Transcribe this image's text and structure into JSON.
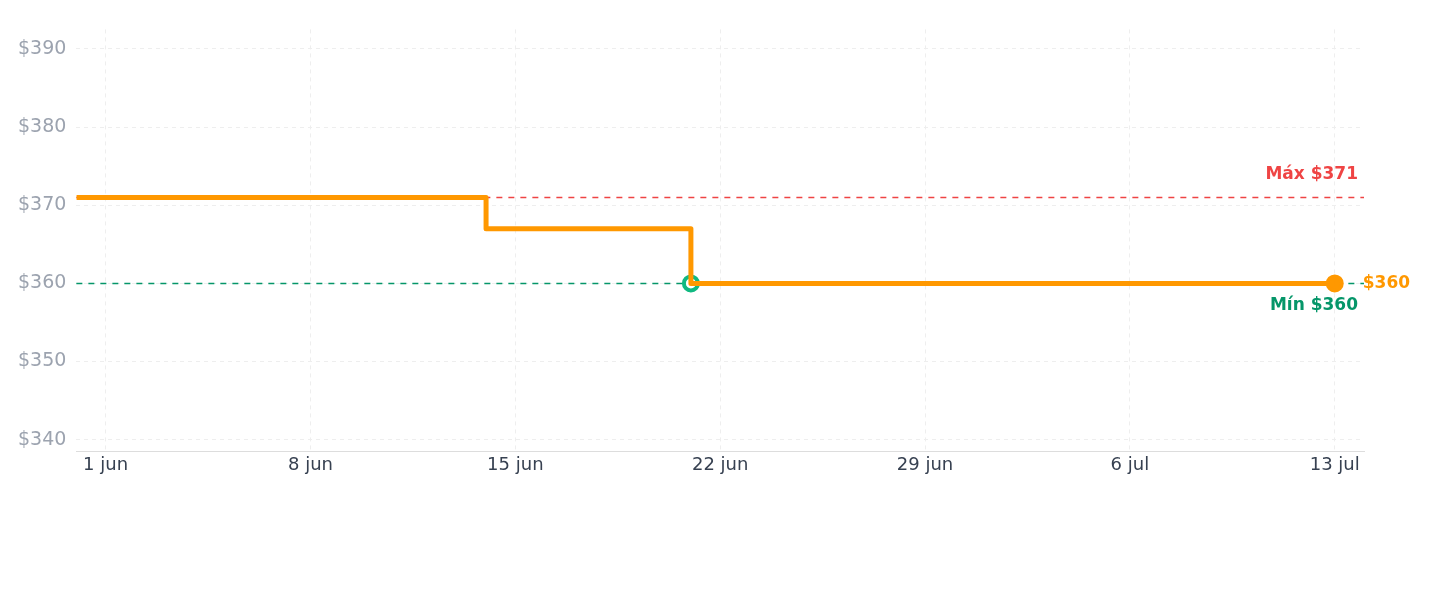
{
  "chart_data": {
    "type": "step",
    "x": [
      "--05-31",
      "--06-14",
      "--06-21",
      "--07-13"
    ],
    "series": [
      {
        "color": "#ff9800",
        "values": [
          371,
          367,
          360,
          360
        ],
        "marker": "none"
      },
      {
        "type": "scatter",
        "color": "#10b981",
        "x": [
          "--06-21"
        ],
        "values": [
          360
        ],
        "marker": "circle"
      },
      {
        "type": "scatter",
        "color": "#ff9800",
        "x": [
          "--07-13"
        ],
        "values": [
          360
        ],
        "marker": "circle"
      }
    ],
    "xlim": [
      "--05-31",
      "--07-14"
    ],
    "xticks": [
      {
        "value": "--06-01",
        "label": "1 jun"
      },
      {
        "value": "--06-08",
        "label": "8 jun"
      },
      {
        "value": "--06-15",
        "label": "15 jun"
      },
      {
        "value": "--06-22",
        "label": "22 jun"
      },
      {
        "value": "--06-29",
        "label": "29 jun"
      },
      {
        "value": "--07-06",
        "label": "6 jul"
      },
      {
        "value": "--07-13",
        "label": "13 jul"
      }
    ],
    "ylim": [
      338.5,
      392.5
    ],
    "yticks": [
      {
        "value": 340,
        "label": "$340"
      },
      {
        "value": 350,
        "label": "$350"
      },
      {
        "value": 360,
        "label": "$360"
      },
      {
        "value": 370,
        "label": "$370"
      },
      {
        "value": 380,
        "label": "$380"
      },
      {
        "value": 390,
        "label": "$390"
      }
    ],
    "grid": true,
    "ref_lines": [
      {
        "axis": "y",
        "value": 371,
        "label": "Máx $371",
        "color": "#ef4444",
        "line_style": "dashed"
      },
      {
        "axis": "y",
        "value": 360,
        "label": "Mín $360",
        "color": "#059669",
        "line_style": "dashed"
      }
    ],
    "annotations": [
      {
        "text": "$360",
        "x": "--07-13",
        "y": 360
      }
    ]
  }
}
